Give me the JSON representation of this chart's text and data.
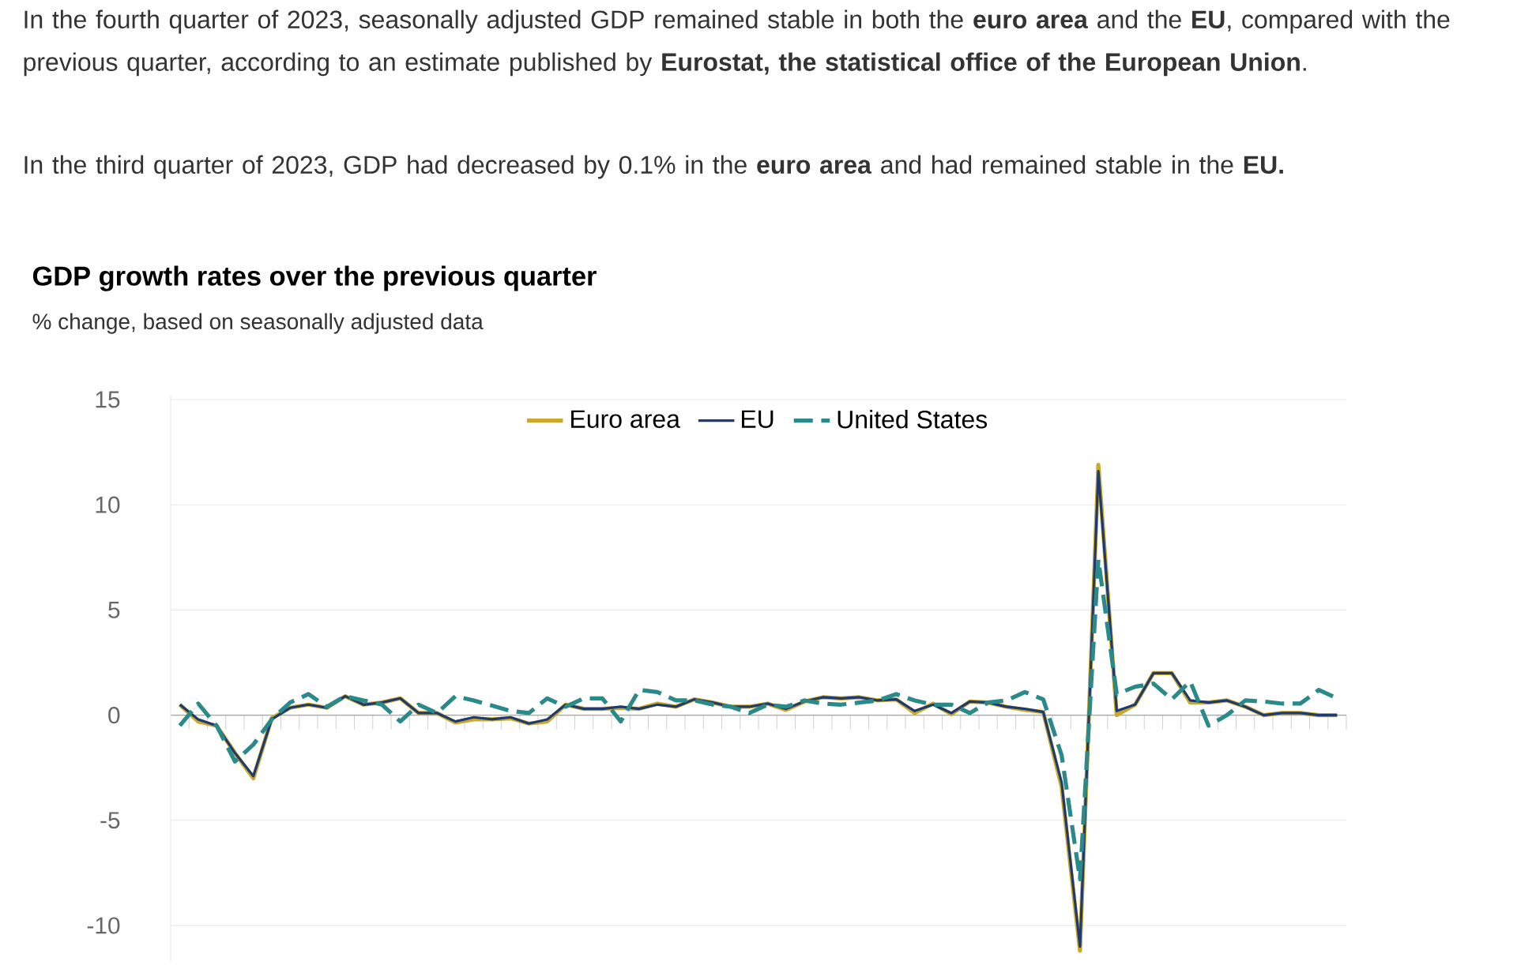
{
  "chart_data": {
    "type": "line",
    "title": "GDP growth rates over the previous quarter",
    "subtitle": "% change, based on seasonally adjusted data",
    "annotations": [
      "In the fourth quarter of 2023, seasonally adjusted GDP remained stable in both the **euro area** and the **EU**, compared with the previous quarter, according to an estimate published by **Eurostat, the statistical office of the European Union**.",
      "In the third quarter of 2023, GDP had decreased by 0.1% in the **euro area** and had remained stable in the **EU.**"
    ],
    "categories": [
      null,
      null,
      null,
      null,
      null,
      null,
      null,
      null,
      null,
      null,
      null,
      null,
      null,
      null,
      null,
      null,
      null,
      null,
      null,
      null,
      null,
      null,
      null,
      null,
      null,
      null,
      null,
      null,
      null,
      null,
      null,
      null,
      null,
      null,
      null,
      null,
      null,
      null,
      null,
      null,
      null,
      null,
      null,
      null,
      null,
      null,
      null,
      null,
      null,
      null,
      null,
      null,
      null,
      null,
      null,
      null,
      null,
      null,
      null,
      null,
      null,
      null,
      null,
      null
    ],
    "series": [
      {
        "name": "Euro area",
        "color": "#c9a92c",
        "line_style": "solid",
        "values": [
          0.5,
          -0.3,
          -0.5,
          -1.8,
          -3.0,
          -0.15,
          0.35,
          0.5,
          0.35,
          0.9,
          0.5,
          0.6,
          0.8,
          0.1,
          0.1,
          -0.35,
          -0.2,
          -0.2,
          -0.15,
          -0.4,
          -0.3,
          0.5,
          0.3,
          0.3,
          0.35,
          0.3,
          0.55,
          0.4,
          0.75,
          0.6,
          0.4,
          0.4,
          0.55,
          0.25,
          0.65,
          0.85,
          0.8,
          0.85,
          0.7,
          0.75,
          0.1,
          0.55,
          0.05,
          0.65,
          0.6,
          0.4,
          0.25,
          0.15,
          -3.4,
          -11.2,
          11.9,
          0.0,
          0.5,
          2.0,
          2.0,
          0.6,
          0.6,
          0.7,
          0.4,
          0.0,
          0.1,
          0.1,
          0.0,
          0.0
        ]
      },
      {
        "name": "EU",
        "color": "#1f3a6e",
        "line_style": "solid",
        "values": [
          0.5,
          -0.2,
          -0.5,
          -1.8,
          -2.9,
          -0.2,
          0.35,
          0.5,
          0.35,
          0.9,
          0.5,
          0.6,
          0.8,
          0.1,
          0.1,
          -0.3,
          -0.1,
          -0.2,
          -0.1,
          -0.4,
          -0.2,
          0.5,
          0.3,
          0.3,
          0.4,
          0.3,
          0.5,
          0.4,
          0.75,
          0.6,
          0.4,
          0.4,
          0.55,
          0.3,
          0.65,
          0.85,
          0.8,
          0.85,
          0.7,
          0.75,
          0.2,
          0.5,
          0.1,
          0.65,
          0.6,
          0.4,
          0.3,
          0.15,
          -3.2,
          -11.0,
          11.6,
          0.2,
          0.5,
          2.0,
          2.0,
          0.7,
          0.6,
          0.7,
          0.4,
          0.0,
          0.1,
          0.1,
          0.0,
          0.0
        ]
      },
      {
        "name": "United States",
        "color": "#2a8a8a",
        "line_style": "dashed",
        "values": [
          -0.5,
          0.55,
          -0.5,
          -2.2,
          -1.4,
          -0.2,
          0.6,
          1.0,
          0.4,
          0.9,
          0.7,
          0.5,
          -0.3,
          0.5,
          0.1,
          0.9,
          0.7,
          0.45,
          0.2,
          0.1,
          0.8,
          0.4,
          0.8,
          0.8,
          -0.3,
          1.2,
          1.1,
          0.7,
          0.7,
          0.5,
          0.4,
          0.1,
          0.5,
          0.4,
          0.7,
          0.55,
          0.5,
          0.6,
          0.7,
          1.0,
          0.7,
          0.5,
          0.5,
          0.1,
          0.6,
          0.7,
          1.1,
          0.75,
          -1.9,
          -7.8,
          7.4,
          1.0,
          1.35,
          1.5,
          0.75,
          1.6,
          -0.5,
          0.0,
          0.7,
          0.65,
          0.55,
          0.55,
          1.2,
          0.8
        ]
      }
    ],
    "ylim": [
      -11.7,
      15.2
    ],
    "yticks": [
      -10,
      -5,
      0,
      5,
      10,
      15
    ],
    "grid": "y",
    "legend": "top",
    "tick_labels": "y"
  }
}
